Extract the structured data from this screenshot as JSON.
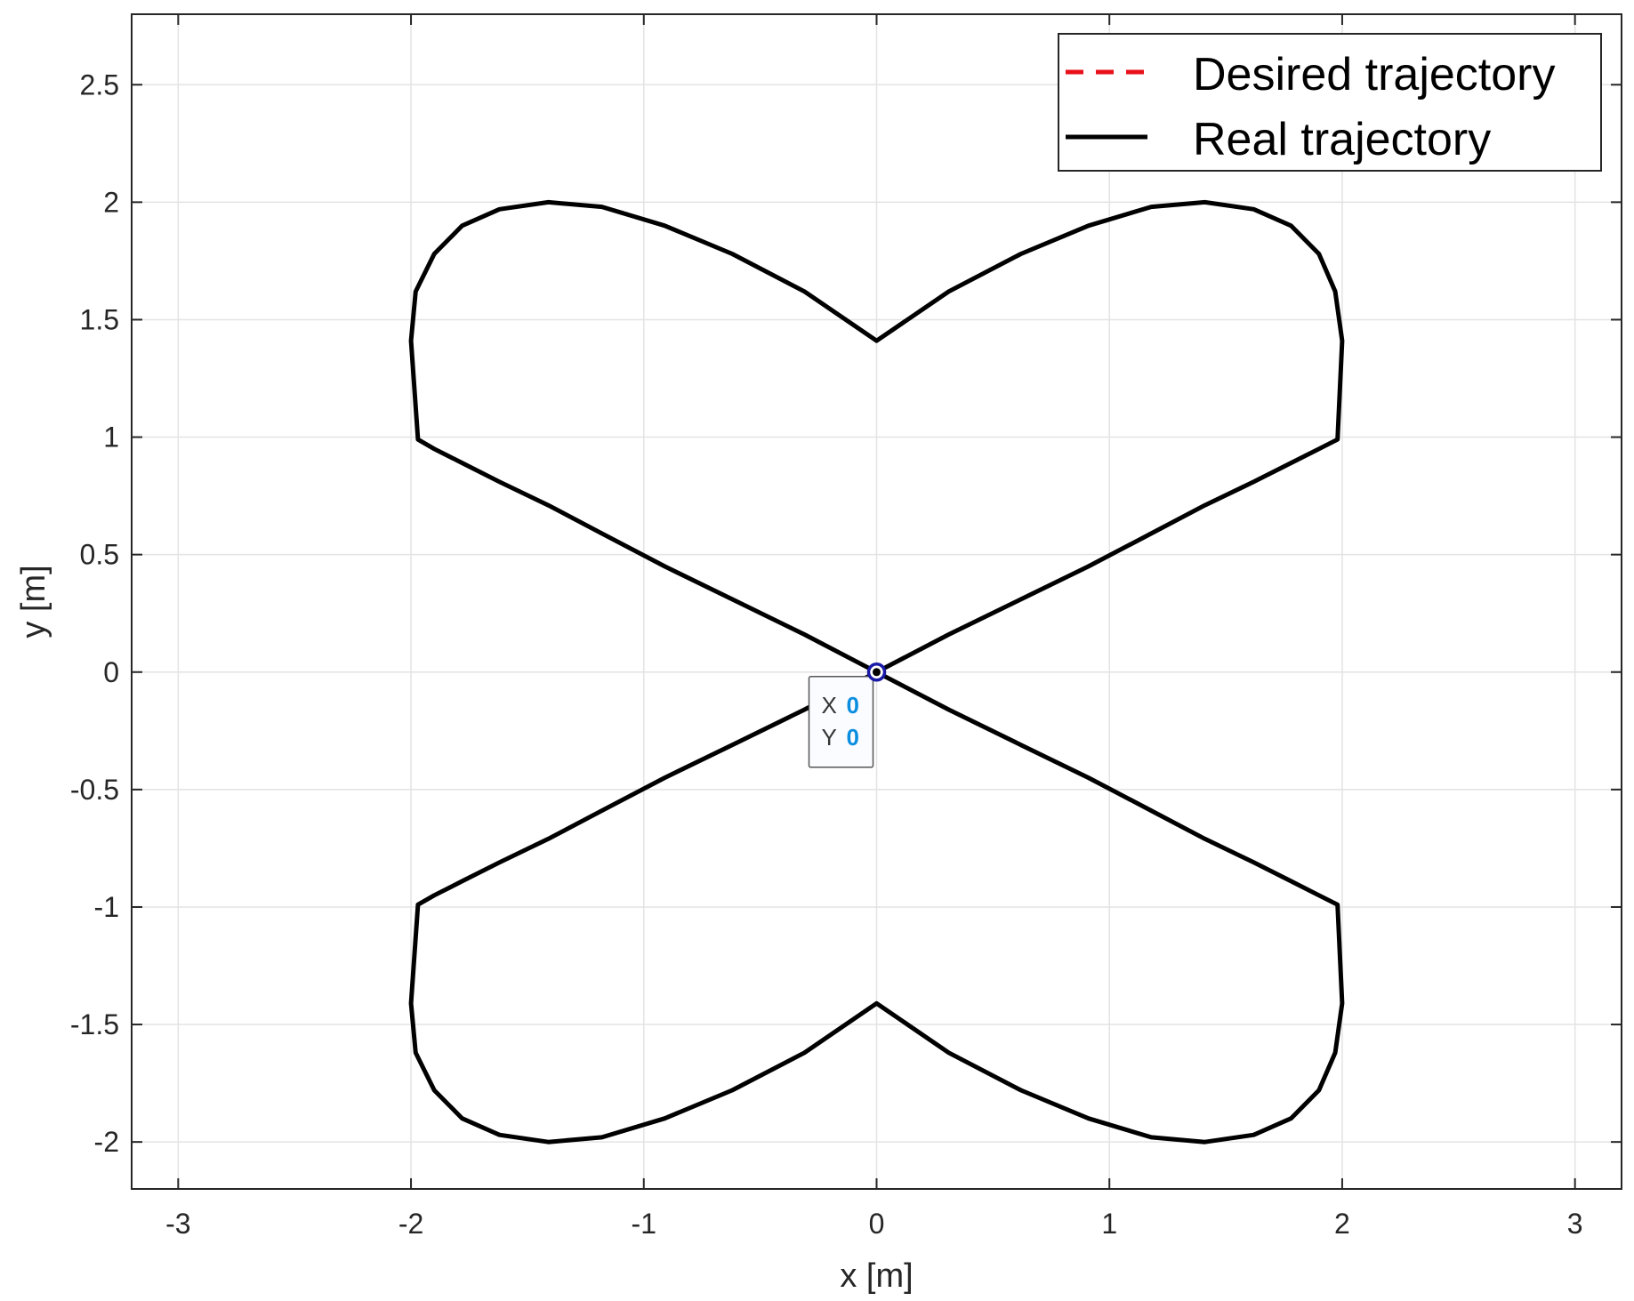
{
  "chart_data": {
    "type": "line",
    "title": "",
    "xlabel": "x [m]",
    "ylabel": "y [m]",
    "xlim": [
      -3.2,
      3.2
    ],
    "ylim": [
      -2.2,
      2.8
    ],
    "grid": true,
    "legend_position": "top-right",
    "x_ticks": [
      -3,
      -2,
      -1,
      0,
      1,
      2,
      3
    ],
    "y_ticks": [
      -2,
      -1.5,
      -1,
      -0.5,
      0,
      0.5,
      1,
      1.5,
      2,
      2.5
    ],
    "x_tick_labels": [
      "-3",
      "-2",
      "-1",
      "0",
      "1",
      "2",
      "3"
    ],
    "y_tick_labels": [
      "-2",
      "-1.5",
      "-1",
      "-0.5",
      "0",
      "0.5",
      "1",
      "1.5",
      "2",
      "2.5"
    ],
    "series": [
      {
        "name": "Desired trajectory",
        "style": "dashed",
        "color": "#e8101a",
        "x": [
          0,
          0.31,
          0.62,
          0.91,
          1.18,
          1.41,
          1.62,
          1.78,
          1.9,
          1.98,
          2.0,
          1.97,
          1.9,
          1.78,
          1.62,
          1.41,
          1.18,
          0.91,
          0.62,
          0.31,
          0,
          -0.31,
          -0.62,
          -0.91,
          -1.18,
          -1.41,
          -1.62,
          -1.78,
          -1.9,
          -1.98,
          -2.0,
          -1.97,
          -1.9,
          -1.78,
          -1.62,
          -1.41,
          -1.18,
          -0.91,
          -0.62,
          -0.31,
          0,
          0.31,
          0.62,
          0.91,
          1.18,
          1.41,
          1.62,
          1.78,
          1.9,
          1.98,
          2.0,
          1.97,
          1.9,
          1.78,
          1.62,
          1.41,
          1.18,
          0.91,
          0.62,
          0.31,
          0,
          -0.31,
          -0.62,
          -0.91,
          -1.18,
          -1.41,
          -1.62,
          -1.78,
          -1.9,
          -1.98,
          -2.0,
          -1.97,
          -1.9,
          -1.78,
          -1.62,
          -1.41,
          -1.18,
          -0.91,
          -0.62,
          -0.31,
          0
        ],
        "y": [
          0,
          0.16,
          0.31,
          0.45,
          0.59,
          0.71,
          0.81,
          0.89,
          0.95,
          0.99,
          1.41,
          1.62,
          1.78,
          1.9,
          1.97,
          2.0,
          1.98,
          1.9,
          1.78,
          1.62,
          1.41,
          1.62,
          1.78,
          1.9,
          1.98,
          2.0,
          1.97,
          1.9,
          1.78,
          1.62,
          1.41,
          0.99,
          0.95,
          0.89,
          0.81,
          0.71,
          0.59,
          0.45,
          0.31,
          0.16,
          0,
          -0.16,
          -0.31,
          -0.45,
          -0.59,
          -0.71,
          -0.81,
          -0.89,
          -0.95,
          -0.99,
          -1.41,
          -1.62,
          -1.78,
          -1.9,
          -1.97,
          -2.0,
          -1.98,
          -1.9,
          -1.78,
          -1.62,
          -1.41,
          -1.62,
          -1.78,
          -1.9,
          -1.98,
          -2.0,
          -1.97,
          -1.9,
          -1.78,
          -1.62,
          -1.41,
          -0.99,
          -0.95,
          -0.89,
          -0.81,
          -0.71,
          -0.59,
          -0.45,
          -0.31,
          -0.16,
          0
        ]
      },
      {
        "name": "Real trajectory",
        "style": "solid",
        "color": "#000000",
        "x": [
          0,
          0.31,
          0.62,
          0.91,
          1.18,
          1.41,
          1.62,
          1.78,
          1.9,
          1.98,
          2.0,
          1.97,
          1.9,
          1.78,
          1.62,
          1.41,
          1.18,
          0.91,
          0.62,
          0.31,
          0,
          -0.31,
          -0.62,
          -0.91,
          -1.18,
          -1.41,
          -1.62,
          -1.78,
          -1.9,
          -1.98,
          -2.0,
          -1.97,
          -1.9,
          -1.78,
          -1.62,
          -1.41,
          -1.18,
          -0.91,
          -0.62,
          -0.31,
          0,
          0.31,
          0.62,
          0.91,
          1.18,
          1.41,
          1.62,
          1.78,
          1.9,
          1.98,
          2.0,
          1.97,
          1.9,
          1.78,
          1.62,
          1.41,
          1.18,
          0.91,
          0.62,
          0.31,
          0,
          -0.31,
          -0.62,
          -0.91,
          -1.18,
          -1.41,
          -1.62,
          -1.78,
          -1.9,
          -1.98,
          -2.0,
          -1.97,
          -1.9,
          -1.78,
          -1.62,
          -1.41,
          -1.18,
          -0.91,
          -0.62,
          -0.31,
          0
        ],
        "y": [
          0,
          0.16,
          0.31,
          0.45,
          0.59,
          0.71,
          0.81,
          0.89,
          0.95,
          0.99,
          1.41,
          1.62,
          1.78,
          1.9,
          1.97,
          2.0,
          1.98,
          1.9,
          1.78,
          1.62,
          1.41,
          1.62,
          1.78,
          1.9,
          1.98,
          2.0,
          1.97,
          1.9,
          1.78,
          1.62,
          1.41,
          0.99,
          0.95,
          0.89,
          0.81,
          0.71,
          0.59,
          0.45,
          0.31,
          0.16,
          0,
          -0.16,
          -0.31,
          -0.45,
          -0.59,
          -0.71,
          -0.81,
          -0.89,
          -0.95,
          -0.99,
          -1.41,
          -1.62,
          -1.78,
          -1.9,
          -1.97,
          -2.0,
          -1.98,
          -1.9,
          -1.78,
          -1.62,
          -1.41,
          -1.62,
          -1.78,
          -1.9,
          -1.98,
          -2.0,
          -1.97,
          -1.9,
          -1.78,
          -1.62,
          -1.41,
          -0.99,
          -0.95,
          -0.89,
          -0.81,
          -0.71,
          -0.59,
          -0.45,
          -0.31,
          -0.16,
          0
        ]
      }
    ],
    "datatip": {
      "x": 0,
      "y": 0,
      "x_label": "X",
      "y_label": "Y",
      "x_value": "0",
      "y_value": "0"
    }
  },
  "colors": {
    "grid": "#e3e3e3",
    "axes": "#262626",
    "desired": "#e8101a",
    "real": "#000000",
    "datatip_value": "#0b8ee0",
    "marker": "#1a1aa8"
  }
}
